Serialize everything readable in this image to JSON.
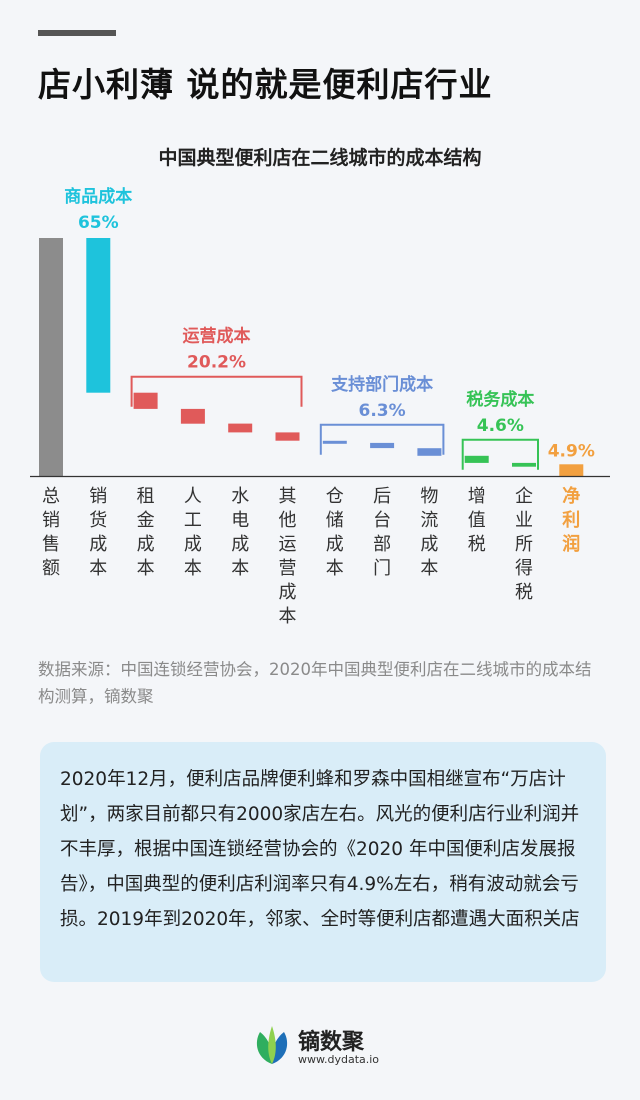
{
  "headline": "店小利薄 说的就是便利店行业",
  "source": "数据来源：中国连锁经营协会，2020年中国典型便利店在二线城市的成本结构测算，镝数聚",
  "note": "2020年12月，便利店品牌便利蜂和罗森中国相继宣布“万店计划”，两家目前都只有2000家店左右。风光的便利店行业利润并不丰厚，根据中国连锁经营协会的《2020 年中国便利店发展报告》，中国典型的便利店利润率只有4.9%左右，稍有波动就会亏损。2019年到2020年，邻家、全时等便利店都遭遇大面积关店",
  "brand": {
    "name": "镝数聚",
    "url": "www.dydata.io"
  },
  "colors": {
    "total": "#8c8c8c",
    "goods": "#1ec3dc",
    "operating": "#e05a5a",
    "support": "#6a8fd6",
    "tax": "#36c356",
    "profit": "#f2a040"
  },
  "chart_data": {
    "type": "bar",
    "subtype": "waterfall",
    "title": "中国典型便利店在二线城市的成本结构",
    "unit": "%",
    "total": 100,
    "categories": [
      "总销售额",
      "销货成本",
      "租金成本",
      "人工成本",
      "水电成本",
      "其他运营成本",
      "仓储成本",
      "后台部门",
      "物流成本",
      "增值税",
      "企业所得税",
      "净利润"
    ],
    "values": [
      100,
      65,
      6.8,
      6.2,
      3.7,
      3.5,
      0.9,
      2.2,
      3.2,
      3.0,
      1.6,
      4.9
    ],
    "groups": [
      {
        "name": "商品成本",
        "value_label": "65%",
        "members": [
          "销货成本"
        ],
        "color_key": "goods"
      },
      {
        "name": "运营成本",
        "value_label": "20.2%",
        "members": [
          "租金成本",
          "人工成本",
          "水电成本",
          "其他运营成本"
        ],
        "color_key": "operating"
      },
      {
        "name": "支持部门成本",
        "value_label": "6.3%",
        "members": [
          "仓储成本",
          "后台部门",
          "物流成本"
        ],
        "color_key": "support"
      },
      {
        "name": "税务成本",
        "value_label": "4.6%",
        "members": [
          "增值税",
          "企业所得税"
        ],
        "color_key": "tax"
      }
    ],
    "profit_label": "4.9%",
    "ylim": [
      0,
      100
    ]
  }
}
